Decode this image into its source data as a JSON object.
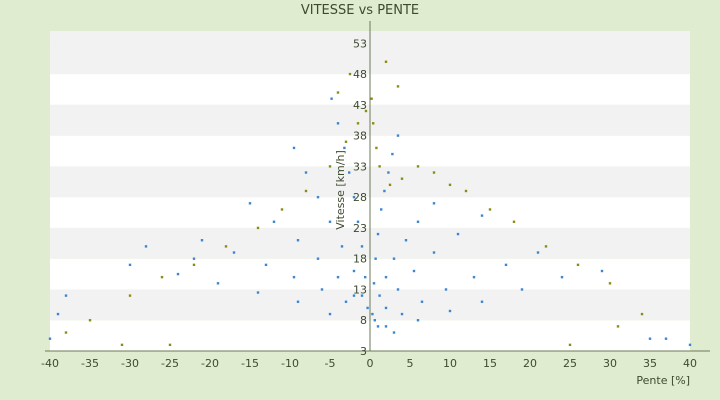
{
  "chart_data": {
    "type": "scatter",
    "title": "VITESSE vs PENTE",
    "xlabel": "Pente [%]",
    "ylabel": "Vitesse [km/h]",
    "xlim": [
      -40,
      40
    ],
    "ylim": [
      3,
      55
    ],
    "x_ticks": [
      -40,
      -35,
      -30,
      -25,
      -20,
      -15,
      -10,
      -5,
      0,
      5,
      10,
      15,
      20,
      25,
      30,
      35,
      40
    ],
    "y_ticks": [
      3,
      8,
      13,
      18,
      23,
      28,
      33,
      38,
      43,
      48,
      53
    ],
    "grid": "horizontal bands",
    "legend": "none",
    "colors": {
      "background": "#dfeccf",
      "band_light": "#ffffff",
      "band_dark": "#f2f2f2",
      "series_blue": "#3a86d0",
      "series_olive": "#8c8c14",
      "text": "#3c4a2e",
      "axis": "#6b7a55"
    },
    "series": [
      {
        "color": "blue",
        "points": [
          [
            0.3,
            9
          ],
          [
            0.5,
            14
          ],
          [
            0.7,
            18
          ],
          [
            1.0,
            22
          ],
          [
            1.4,
            26
          ],
          [
            1.8,
            29
          ],
          [
            2.3,
            32
          ],
          [
            2.8,
            35
          ],
          [
            3.5,
            38
          ],
          [
            0.6,
            8
          ],
          [
            1.2,
            12
          ],
          [
            2.0,
            15
          ],
          [
            3.0,
            18
          ],
          [
            4.5,
            21
          ],
          [
            6.0,
            24
          ],
          [
            8.0,
            27
          ],
          [
            1.0,
            7
          ],
          [
            2.0,
            10
          ],
          [
            3.5,
            13
          ],
          [
            5.5,
            16
          ],
          [
            8.0,
            19
          ],
          [
            11.0,
            22
          ],
          [
            14.0,
            25
          ],
          [
            2.0,
            7
          ],
          [
            4.0,
            9
          ],
          [
            6.5,
            11
          ],
          [
            9.5,
            13
          ],
          [
            13.0,
            15
          ],
          [
            17.0,
            17
          ],
          [
            21.0,
            19
          ],
          [
            3.0,
            6
          ],
          [
            6.0,
            8
          ],
          [
            10.0,
            9.5
          ],
          [
            14.0,
            11
          ],
          [
            19.0,
            13
          ],
          [
            24.0,
            15
          ],
          [
            29.0,
            16
          ],
          [
            -0.3,
            10
          ],
          [
            -0.6,
            15
          ],
          [
            -1.0,
            20
          ],
          [
            -1.5,
            24
          ],
          [
            -2.0,
            28
          ],
          [
            -2.6,
            32
          ],
          [
            -3.2,
            36
          ],
          [
            -4.0,
            40
          ],
          [
            -4.8,
            44
          ],
          [
            -1.0,
            12
          ],
          [
            -2.0,
            16
          ],
          [
            -3.5,
            20
          ],
          [
            -5.0,
            24
          ],
          [
            -6.5,
            28
          ],
          [
            -8.0,
            32
          ],
          [
            -9.5,
            36
          ],
          [
            -2.0,
            12
          ],
          [
            -4.0,
            15
          ],
          [
            -6.5,
            18
          ],
          [
            -9.0,
            21
          ],
          [
            -12.0,
            24
          ],
          [
            -15.0,
            27
          ],
          [
            -3.0,
            11
          ],
          [
            -6.0,
            13
          ],
          [
            -9.5,
            15
          ],
          [
            -13.0,
            17
          ],
          [
            -17.0,
            19
          ],
          [
            -21.0,
            21
          ],
          [
            -5.0,
            9
          ],
          [
            -9.0,
            11
          ],
          [
            -14.0,
            12.5
          ],
          [
            -19.0,
            14
          ],
          [
            -24.0,
            15.5
          ],
          [
            -30.0,
            17
          ],
          [
            -38,
            12
          ],
          [
            -39,
            9
          ],
          [
            -40,
            5
          ],
          [
            35,
            5
          ],
          [
            37,
            5
          ],
          [
            40,
            4
          ],
          [
            -22,
            18
          ],
          [
            -28,
            20
          ]
        ]
      },
      {
        "color": "olive",
        "points": [
          [
            0.2,
            44
          ],
          [
            0.4,
            40
          ],
          [
            0.8,
            36
          ],
          [
            1.2,
            33
          ],
          [
            2.5,
            30
          ],
          [
            4.0,
            31
          ],
          [
            6.0,
            33
          ],
          [
            8.0,
            32
          ],
          [
            10.0,
            30
          ],
          [
            12.0,
            29
          ],
          [
            15.0,
            26
          ],
          [
            18.0,
            24
          ],
          [
            22.0,
            20
          ],
          [
            26.0,
            17
          ],
          [
            30.0,
            14
          ],
          [
            34.0,
            9
          ],
          [
            -0.5,
            42
          ],
          [
            -1.5,
            40
          ],
          [
            -3.0,
            37
          ],
          [
            -5.0,
            33
          ],
          [
            -8.0,
            29
          ],
          [
            -11.0,
            26
          ],
          [
            -14.0,
            23
          ],
          [
            -18.0,
            20
          ],
          [
            -22.0,
            17
          ],
          [
            -26.0,
            15
          ],
          [
            -30.0,
            12
          ],
          [
            -35.0,
            8
          ],
          [
            -38.0,
            6
          ],
          [
            2.0,
            50
          ],
          [
            -2.5,
            48
          ],
          [
            3.5,
            46
          ],
          [
            -4.0,
            45
          ],
          [
            25,
            4
          ],
          [
            -25,
            4
          ],
          [
            -31,
            4
          ],
          [
            31,
            7
          ]
        ]
      }
    ]
  }
}
